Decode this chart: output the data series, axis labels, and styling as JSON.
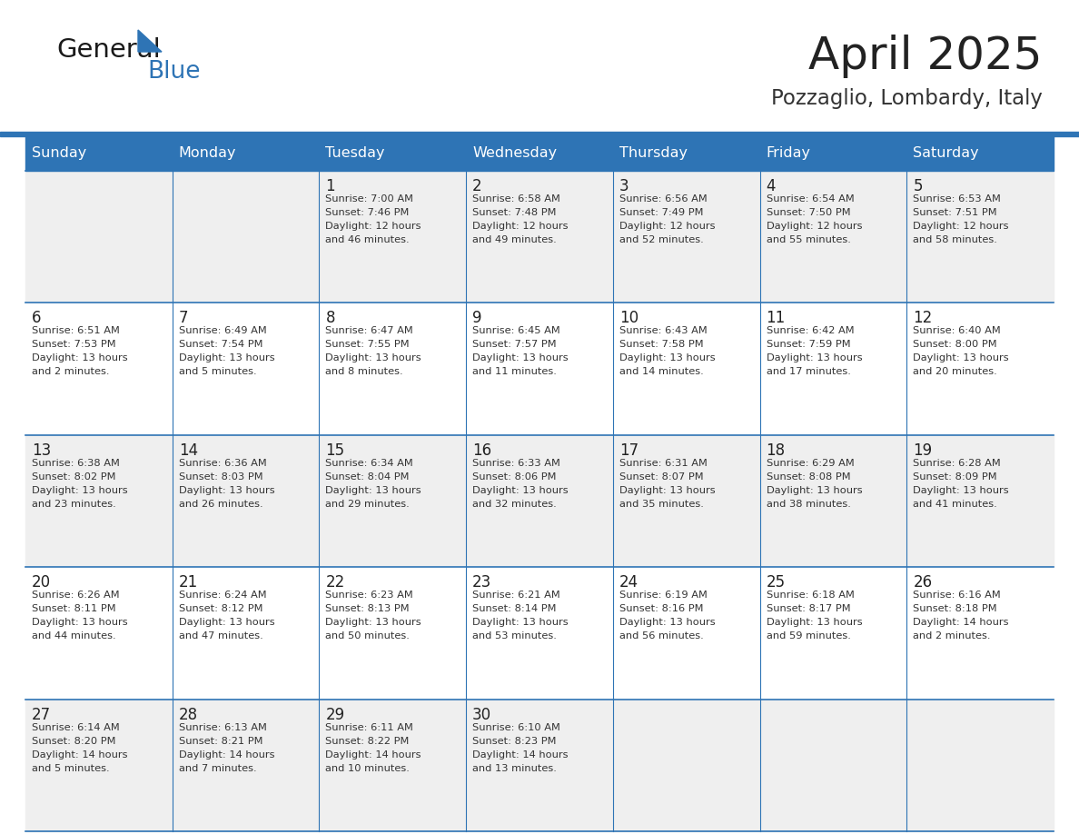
{
  "title": "April 2025",
  "subtitle": "Pozzaglio, Lombardy, Italy",
  "days_of_week": [
    "Sunday",
    "Monday",
    "Tuesday",
    "Wednesday",
    "Thursday",
    "Friday",
    "Saturday"
  ],
  "header_bg": "#2E74B5",
  "header_text": "#FFFFFF",
  "row_bg_odd": "#EFEFEF",
  "row_bg_even": "#FFFFFF",
  "day_num_color": "#222222",
  "cell_text_color": "#333333",
  "line_color": "#2E74B5",
  "title_color": "#222222",
  "subtitle_color": "#333333",
  "logo_black": "#1a1a1a",
  "logo_blue": "#2E74B5",
  "calendar_data": [
    [
      {
        "day": null,
        "info": null
      },
      {
        "day": null,
        "info": null
      },
      {
        "day": 1,
        "info": "Sunrise: 7:00 AM\nSunset: 7:46 PM\nDaylight: 12 hours\nand 46 minutes."
      },
      {
        "day": 2,
        "info": "Sunrise: 6:58 AM\nSunset: 7:48 PM\nDaylight: 12 hours\nand 49 minutes."
      },
      {
        "day": 3,
        "info": "Sunrise: 6:56 AM\nSunset: 7:49 PM\nDaylight: 12 hours\nand 52 minutes."
      },
      {
        "day": 4,
        "info": "Sunrise: 6:54 AM\nSunset: 7:50 PM\nDaylight: 12 hours\nand 55 minutes."
      },
      {
        "day": 5,
        "info": "Sunrise: 6:53 AM\nSunset: 7:51 PM\nDaylight: 12 hours\nand 58 minutes."
      }
    ],
    [
      {
        "day": 6,
        "info": "Sunrise: 6:51 AM\nSunset: 7:53 PM\nDaylight: 13 hours\nand 2 minutes."
      },
      {
        "day": 7,
        "info": "Sunrise: 6:49 AM\nSunset: 7:54 PM\nDaylight: 13 hours\nand 5 minutes."
      },
      {
        "day": 8,
        "info": "Sunrise: 6:47 AM\nSunset: 7:55 PM\nDaylight: 13 hours\nand 8 minutes."
      },
      {
        "day": 9,
        "info": "Sunrise: 6:45 AM\nSunset: 7:57 PM\nDaylight: 13 hours\nand 11 minutes."
      },
      {
        "day": 10,
        "info": "Sunrise: 6:43 AM\nSunset: 7:58 PM\nDaylight: 13 hours\nand 14 minutes."
      },
      {
        "day": 11,
        "info": "Sunrise: 6:42 AM\nSunset: 7:59 PM\nDaylight: 13 hours\nand 17 minutes."
      },
      {
        "day": 12,
        "info": "Sunrise: 6:40 AM\nSunset: 8:00 PM\nDaylight: 13 hours\nand 20 minutes."
      }
    ],
    [
      {
        "day": 13,
        "info": "Sunrise: 6:38 AM\nSunset: 8:02 PM\nDaylight: 13 hours\nand 23 minutes."
      },
      {
        "day": 14,
        "info": "Sunrise: 6:36 AM\nSunset: 8:03 PM\nDaylight: 13 hours\nand 26 minutes."
      },
      {
        "day": 15,
        "info": "Sunrise: 6:34 AM\nSunset: 8:04 PM\nDaylight: 13 hours\nand 29 minutes."
      },
      {
        "day": 16,
        "info": "Sunrise: 6:33 AM\nSunset: 8:06 PM\nDaylight: 13 hours\nand 32 minutes."
      },
      {
        "day": 17,
        "info": "Sunrise: 6:31 AM\nSunset: 8:07 PM\nDaylight: 13 hours\nand 35 minutes."
      },
      {
        "day": 18,
        "info": "Sunrise: 6:29 AM\nSunset: 8:08 PM\nDaylight: 13 hours\nand 38 minutes."
      },
      {
        "day": 19,
        "info": "Sunrise: 6:28 AM\nSunset: 8:09 PM\nDaylight: 13 hours\nand 41 minutes."
      }
    ],
    [
      {
        "day": 20,
        "info": "Sunrise: 6:26 AM\nSunset: 8:11 PM\nDaylight: 13 hours\nand 44 minutes."
      },
      {
        "day": 21,
        "info": "Sunrise: 6:24 AM\nSunset: 8:12 PM\nDaylight: 13 hours\nand 47 minutes."
      },
      {
        "day": 22,
        "info": "Sunrise: 6:23 AM\nSunset: 8:13 PM\nDaylight: 13 hours\nand 50 minutes."
      },
      {
        "day": 23,
        "info": "Sunrise: 6:21 AM\nSunset: 8:14 PM\nDaylight: 13 hours\nand 53 minutes."
      },
      {
        "day": 24,
        "info": "Sunrise: 6:19 AM\nSunset: 8:16 PM\nDaylight: 13 hours\nand 56 minutes."
      },
      {
        "day": 25,
        "info": "Sunrise: 6:18 AM\nSunset: 8:17 PM\nDaylight: 13 hours\nand 59 minutes."
      },
      {
        "day": 26,
        "info": "Sunrise: 6:16 AM\nSunset: 8:18 PM\nDaylight: 14 hours\nand 2 minutes."
      }
    ],
    [
      {
        "day": 27,
        "info": "Sunrise: 6:14 AM\nSunset: 8:20 PM\nDaylight: 14 hours\nand 5 minutes."
      },
      {
        "day": 28,
        "info": "Sunrise: 6:13 AM\nSunset: 8:21 PM\nDaylight: 14 hours\nand 7 minutes."
      },
      {
        "day": 29,
        "info": "Sunrise: 6:11 AM\nSunset: 8:22 PM\nDaylight: 14 hours\nand 10 minutes."
      },
      {
        "day": 30,
        "info": "Sunrise: 6:10 AM\nSunset: 8:23 PM\nDaylight: 14 hours\nand 13 minutes."
      },
      {
        "day": null,
        "info": null
      },
      {
        "day": null,
        "info": null
      },
      {
        "day": null,
        "info": null
      }
    ]
  ]
}
